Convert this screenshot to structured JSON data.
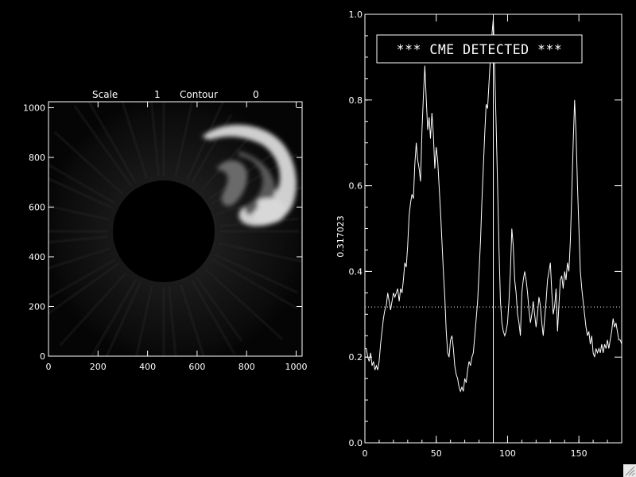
{
  "header": {
    "scale_label": "Scale",
    "scale_value": "1",
    "contour_label": "Contour",
    "contour_value": "0"
  },
  "banner": {
    "text": "*** CME DETECTED ***"
  },
  "chart_data": [
    {
      "type": "image",
      "xlim": [
        0,
        1024
      ],
      "ylim": [
        0,
        1024
      ],
      "x_ticks": [
        "0",
        "200",
        "400",
        "600",
        "800",
        "1000"
      ],
      "y_ticks": [
        "0",
        "200",
        "400",
        "600",
        "800",
        "1000"
      ],
      "header_text": [
        "Scale",
        "1",
        "Contour",
        "0"
      ]
    },
    {
      "type": "line",
      "ylabel": "0.317023",
      "xlim": [
        0,
        180
      ],
      "ylim": [
        0.0,
        1.0
      ],
      "x_ticks": [
        "0",
        "50",
        "100",
        "150"
      ],
      "y_ticks": [
        "0.0",
        "0.2",
        "0.4",
        "0.6",
        "0.8",
        "1.0"
      ],
      "threshold": 0.317023,
      "marker_x": 90,
      "x": [
        0,
        1,
        2,
        3,
        4,
        5,
        6,
        7,
        8,
        9,
        10,
        11,
        12,
        13,
        14,
        15,
        16,
        17,
        18,
        19,
        20,
        21,
        22,
        23,
        24,
        25,
        26,
        27,
        28,
        29,
        30,
        31,
        32,
        33,
        34,
        35,
        36,
        37,
        38,
        39,
        40,
        41,
        42,
        43,
        44,
        45,
        46,
        47,
        48,
        49,
        50,
        51,
        52,
        53,
        54,
        55,
        56,
        57,
        58,
        59,
        60,
        61,
        62,
        63,
        64,
        65,
        66,
        67,
        68,
        69,
        70,
        71,
        72,
        73,
        74,
        75,
        76,
        77,
        78,
        79,
        80,
        81,
        82,
        83,
        84,
        85,
        86,
        87,
        88,
        89,
        90,
        91,
        92,
        93,
        94,
        95,
        96,
        97,
        98,
        99,
        100,
        101,
        102,
        103,
        104,
        105,
        106,
        107,
        108,
        109,
        110,
        111,
        112,
        113,
        114,
        115,
        116,
        117,
        118,
        119,
        120,
        121,
        122,
        123,
        124,
        125,
        126,
        127,
        128,
        129,
        130,
        131,
        132,
        133,
        134,
        135,
        136,
        137,
        138,
        139,
        140,
        141,
        142,
        143,
        144,
        145,
        146,
        147,
        148,
        149,
        150,
        151,
        152,
        153,
        154,
        155,
        156,
        157,
        158,
        159,
        160,
        161,
        162,
        163,
        164,
        165,
        166,
        167,
        168,
        169,
        170,
        171,
        172,
        173,
        174,
        175,
        176,
        177,
        178,
        179,
        180
      ],
      "y": [
        0.22,
        0.22,
        0.2,
        0.19,
        0.21,
        0.18,
        0.19,
        0.17,
        0.18,
        0.17,
        0.19,
        0.23,
        0.26,
        0.29,
        0.31,
        0.32,
        0.35,
        0.33,
        0.31,
        0.33,
        0.35,
        0.34,
        0.35,
        0.36,
        0.33,
        0.36,
        0.35,
        0.38,
        0.42,
        0.41,
        0.46,
        0.53,
        0.56,
        0.58,
        0.57,
        0.65,
        0.7,
        0.66,
        0.64,
        0.61,
        0.73,
        0.81,
        0.88,
        0.8,
        0.73,
        0.76,
        0.71,
        0.77,
        0.72,
        0.64,
        0.69,
        0.66,
        0.6,
        0.54,
        0.47,
        0.4,
        0.34,
        0.26,
        0.21,
        0.2,
        0.24,
        0.25,
        0.22,
        0.18,
        0.16,
        0.15,
        0.13,
        0.12,
        0.13,
        0.12,
        0.15,
        0.14,
        0.17,
        0.19,
        0.18,
        0.2,
        0.21,
        0.25,
        0.29,
        0.33,
        0.4,
        0.47,
        0.56,
        0.64,
        0.72,
        0.79,
        0.78,
        0.84,
        0.9,
        0.95,
        0.99,
        0.87,
        0.74,
        0.6,
        0.45,
        0.33,
        0.28,
        0.26,
        0.25,
        0.26,
        0.28,
        0.33,
        0.4,
        0.5,
        0.46,
        0.38,
        0.35,
        0.3,
        0.28,
        0.25,
        0.35,
        0.38,
        0.4,
        0.38,
        0.35,
        0.31,
        0.28,
        0.3,
        0.33,
        0.3,
        0.27,
        0.3,
        0.34,
        0.32,
        0.28,
        0.25,
        0.29,
        0.33,
        0.38,
        0.4,
        0.42,
        0.35,
        0.3,
        0.32,
        0.36,
        0.26,
        0.32,
        0.38,
        0.39,
        0.36,
        0.4,
        0.38,
        0.42,
        0.4,
        0.47,
        0.58,
        0.7,
        0.8,
        0.72,
        0.6,
        0.5,
        0.4,
        0.36,
        0.33,
        0.3,
        0.27,
        0.25,
        0.26,
        0.23,
        0.25,
        0.21,
        0.2,
        0.22,
        0.21,
        0.22,
        0.21,
        0.23,
        0.21,
        0.23,
        0.22,
        0.24,
        0.22,
        0.24,
        0.26,
        0.29,
        0.27,
        0.28,
        0.26,
        0.24,
        0.24,
        0.23
      ]
    }
  ]
}
